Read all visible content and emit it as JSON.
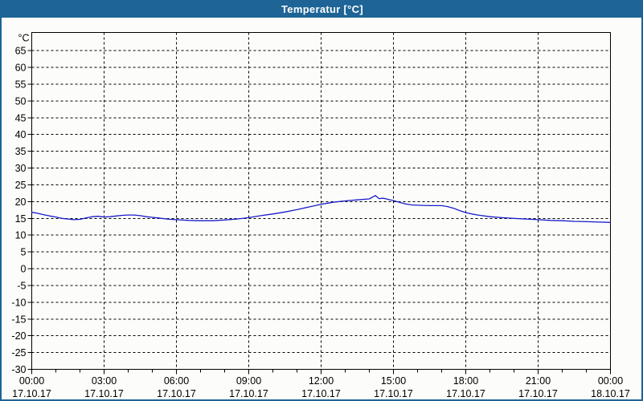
{
  "window": {
    "title": "Temperatur [°C]"
  },
  "colors": {
    "titlebar_bg": "#1e6496",
    "titlebar_text": "#ffffff",
    "window_border": "#1e6496",
    "page_bg": "#fcfdfa",
    "plot_border": "#000000",
    "grid": "#000000",
    "axis_text": "#000000",
    "series_line": "#1a1aca"
  },
  "chart_data": {
    "type": "line",
    "title": "Temperatur [°C]",
    "y_unit_label": "°C",
    "ylabel": "",
    "xlabel": "",
    "ylim": [
      -30,
      70.4
    ],
    "y_ticks": [
      65,
      60,
      55,
      50,
      45,
      40,
      35,
      30,
      25,
      20,
      15,
      10,
      5,
      0,
      -5,
      -10,
      -15,
      -20,
      -25,
      -30
    ],
    "x_range_hours": [
      0,
      24
    ],
    "x_minor_step_hours": 1,
    "x_major_step_hours": 3,
    "grid_style": "dashed",
    "legend": "none",
    "x_labels": [
      {
        "hour": 0,
        "time": "00:00",
        "date": "17.10.17"
      },
      {
        "hour": 3,
        "time": "03:00",
        "date": "17.10.17"
      },
      {
        "hour": 6,
        "time": "06:00",
        "date": "17.10.17"
      },
      {
        "hour": 9,
        "time": "09:00",
        "date": "17.10.17"
      },
      {
        "hour": 12,
        "time": "12:00",
        "date": "17.10.17"
      },
      {
        "hour": 15,
        "time": "15:00",
        "date": "17.10.17"
      },
      {
        "hour": 18,
        "time": "18:00",
        "date": "17.10.17"
      },
      {
        "hour": 21,
        "time": "21:00",
        "date": "17.10.17"
      },
      {
        "hour": 24,
        "time": "00:00",
        "date": "18.10.17"
      }
    ],
    "series": [
      {
        "name": "Temperatur",
        "color": "#1a1aca",
        "points": [
          [
            0.0,
            16.8
          ],
          [
            0.25,
            16.5
          ],
          [
            0.5,
            16.1
          ],
          [
            0.75,
            15.7
          ],
          [
            1.0,
            15.4
          ],
          [
            1.25,
            15.0
          ],
          [
            1.5,
            14.8
          ],
          [
            1.75,
            14.6
          ],
          [
            2.0,
            14.7
          ],
          [
            2.25,
            15.1
          ],
          [
            2.5,
            15.5
          ],
          [
            2.75,
            15.6
          ],
          [
            3.0,
            15.4
          ],
          [
            3.25,
            15.5
          ],
          [
            3.5,
            15.7
          ],
          [
            3.75,
            15.9
          ],
          [
            4.0,
            16.0
          ],
          [
            4.25,
            16.0
          ],
          [
            4.5,
            15.8
          ],
          [
            4.75,
            15.5
          ],
          [
            5.0,
            15.3
          ],
          [
            5.25,
            15.1
          ],
          [
            5.5,
            14.9
          ],
          [
            5.75,
            14.7
          ],
          [
            6.0,
            14.6
          ],
          [
            6.5,
            14.4
          ],
          [
            7.0,
            14.3
          ],
          [
            7.5,
            14.3
          ],
          [
            8.0,
            14.5
          ],
          [
            8.5,
            14.8
          ],
          [
            9.0,
            15.2
          ],
          [
            9.5,
            15.8
          ],
          [
            10.0,
            16.3
          ],
          [
            10.5,
            16.9
          ],
          [
            11.0,
            17.6
          ],
          [
            11.5,
            18.4
          ],
          [
            12.0,
            19.2
          ],
          [
            12.5,
            19.8
          ],
          [
            13.0,
            20.2
          ],
          [
            13.5,
            20.5
          ],
          [
            14.0,
            20.8
          ],
          [
            14.25,
            21.8
          ],
          [
            14.4,
            20.9
          ],
          [
            14.6,
            21.0
          ],
          [
            14.8,
            20.6
          ],
          [
            15.0,
            20.3
          ],
          [
            15.25,
            19.8
          ],
          [
            15.5,
            19.3
          ],
          [
            15.75,
            19.0
          ],
          [
            16.0,
            18.9
          ],
          [
            16.5,
            18.8
          ],
          [
            17.0,
            18.8
          ],
          [
            17.25,
            18.5
          ],
          [
            17.5,
            18.0
          ],
          [
            17.75,
            17.3
          ],
          [
            18.0,
            16.7
          ],
          [
            18.25,
            16.3
          ],
          [
            18.5,
            16.0
          ],
          [
            19.0,
            15.5
          ],
          [
            19.5,
            15.2
          ],
          [
            20.0,
            15.0
          ],
          [
            20.5,
            14.8
          ],
          [
            21.0,
            14.6
          ],
          [
            21.5,
            14.4
          ],
          [
            22.0,
            14.3
          ],
          [
            22.5,
            14.1
          ],
          [
            23.0,
            14.0
          ],
          [
            23.5,
            13.9
          ],
          [
            24.0,
            13.8
          ]
        ]
      }
    ]
  }
}
